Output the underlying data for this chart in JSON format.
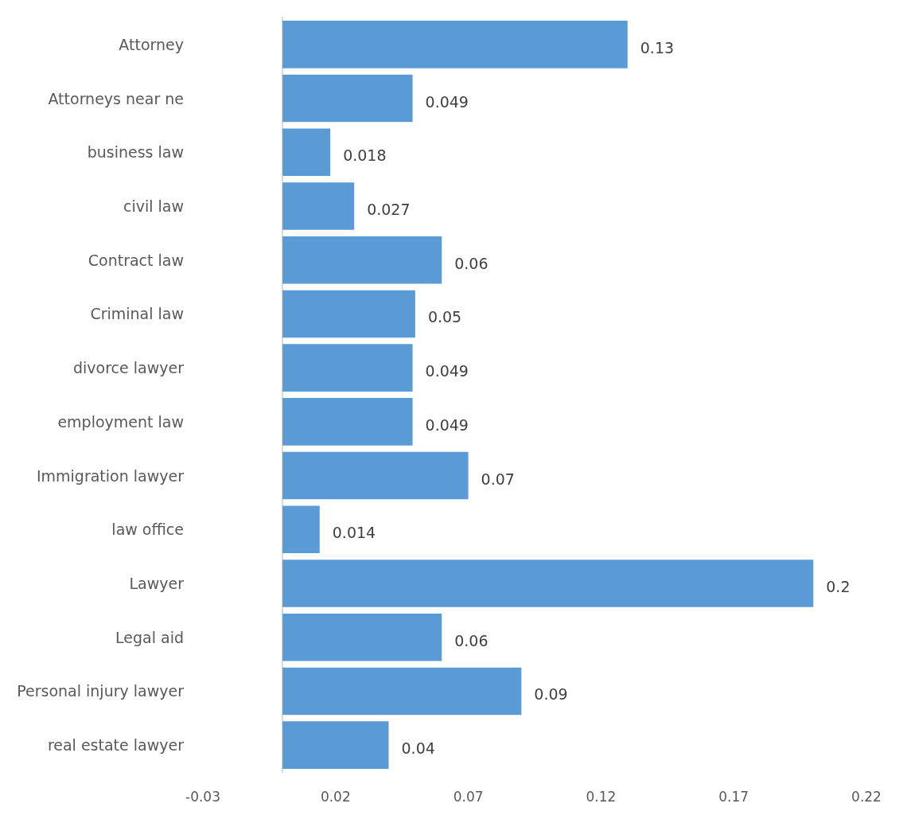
{
  "chart_data": {
    "type": "bar",
    "orientation": "horizontal",
    "categories": [
      "Attorney",
      "Attorneys near ne",
      "business law",
      "civil law",
      "Contract law",
      "Criminal law",
      "divorce lawyer",
      "employment law",
      "Immigration lawyer",
      "law office",
      "Lawyer",
      "Legal aid",
      "Personal injury lawyer",
      "real estate lawyer"
    ],
    "values": [
      0.13,
      0.049,
      0.018,
      0.027,
      0.06,
      0.05,
      0.049,
      0.049,
      0.07,
      0.014,
      0.2,
      0.06,
      0.09,
      0.04
    ],
    "color": "#5b9bd5",
    "xlim": [
      -0.03,
      0.22
    ],
    "xticks": [
      -0.03,
      0.02,
      0.07,
      0.12,
      0.17,
      0.22
    ],
    "data_labels": true,
    "grid": false
  }
}
